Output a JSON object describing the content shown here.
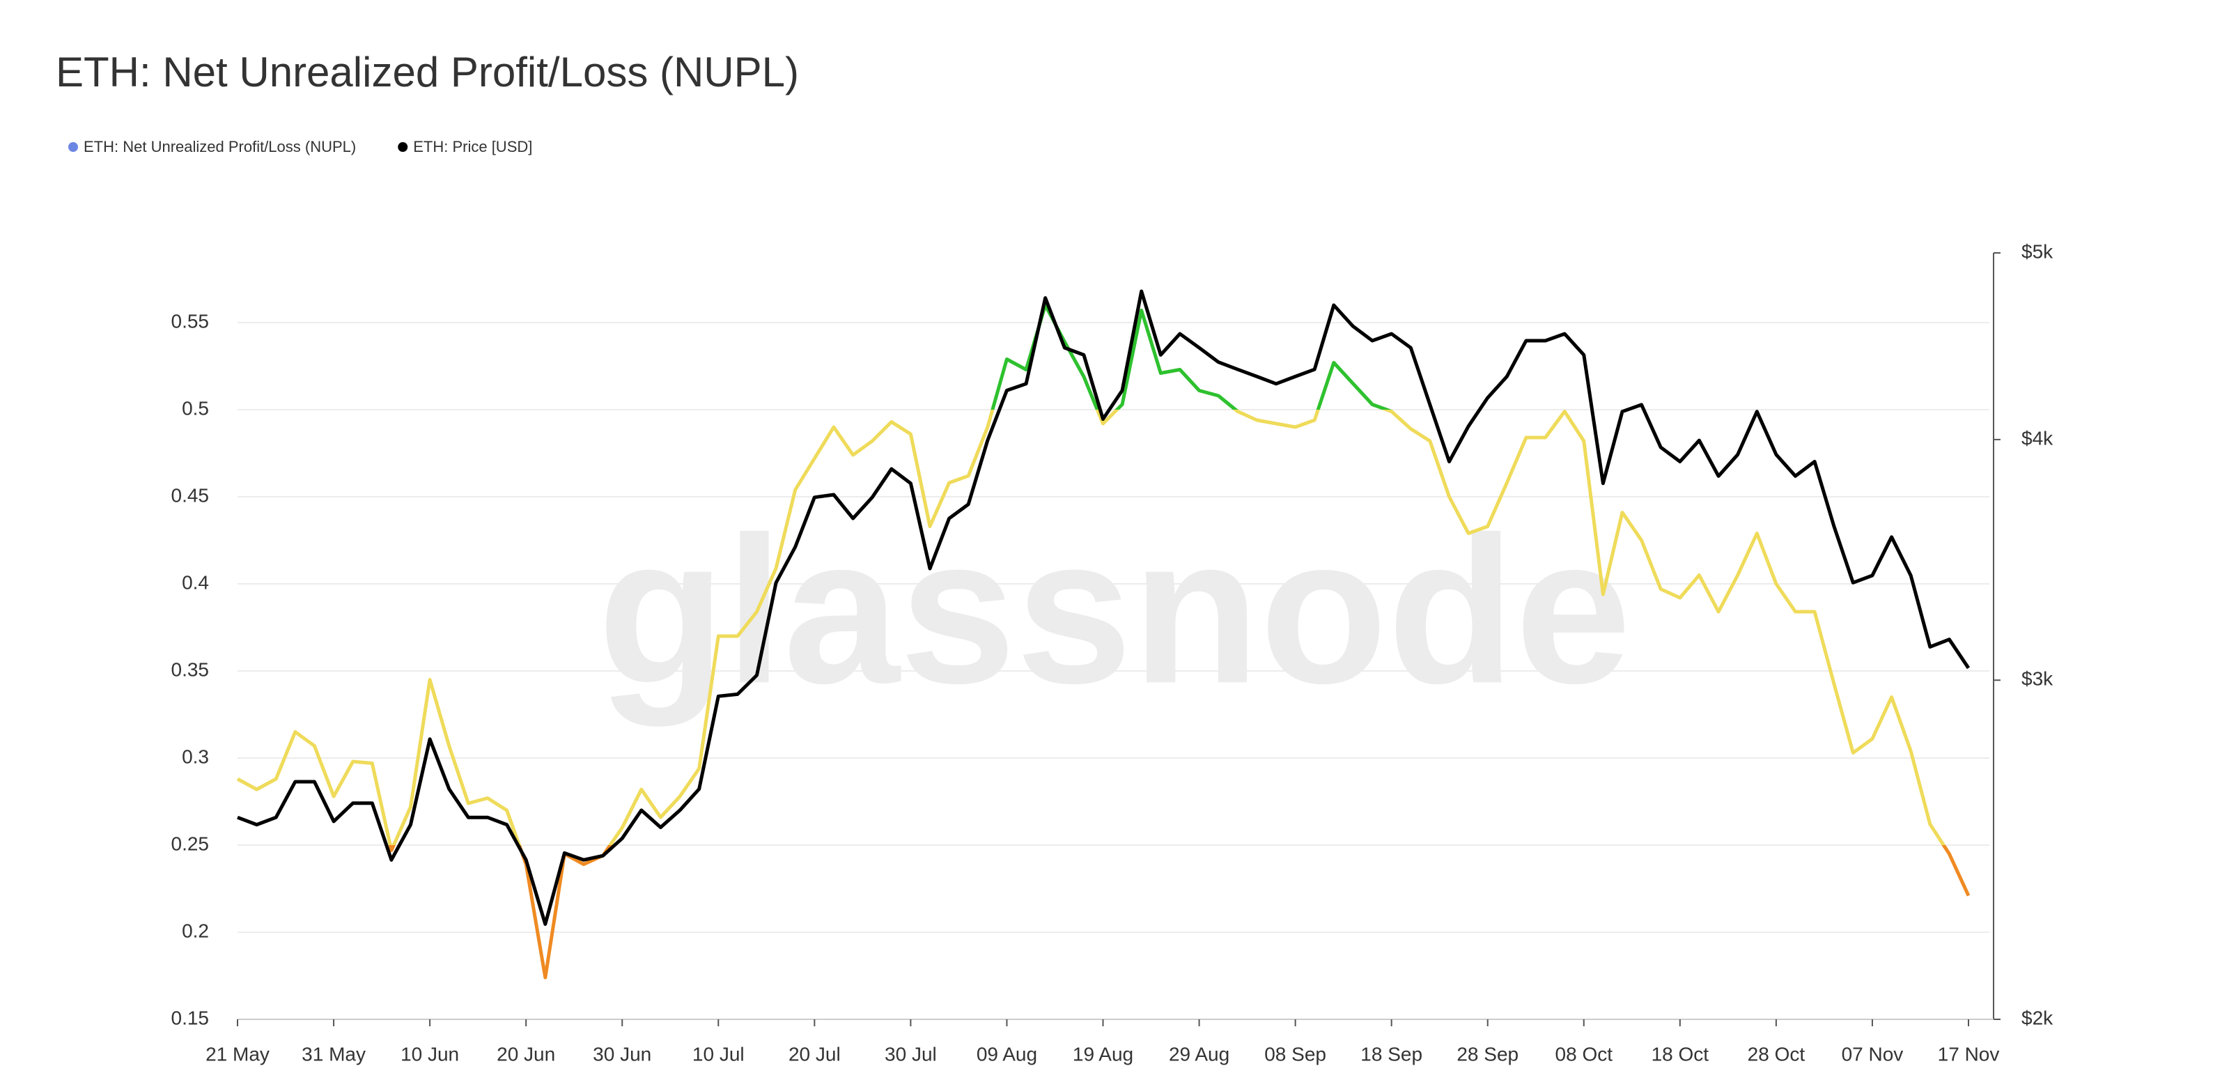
{
  "chart_data": {
    "type": "line",
    "title": "ETH: Net Unrealized Profit/Loss (NUPL)",
    "watermark": "glassnode",
    "categories": [
      "21 May",
      null,
      null,
      null,
      null,
      "31 May",
      null,
      null,
      null,
      null,
      "10 Jun",
      null,
      null,
      null,
      null,
      "20 Jun",
      null,
      null,
      null,
      null,
      "30 Jun",
      null,
      null,
      null,
      null,
      "10 Jul",
      null,
      null,
      null,
      null,
      "20 Jul",
      null,
      null,
      null,
      null,
      "30 Jul",
      null,
      null,
      null,
      null,
      "09 Aug",
      null,
      null,
      null,
      null,
      "19 Aug",
      null,
      null,
      null,
      null,
      "29 Aug",
      null,
      null,
      null,
      null,
      "08 Sep",
      null,
      null,
      null,
      null,
      "18 Sep",
      null,
      null,
      null,
      null,
      "28 Sep",
      null,
      null,
      null,
      null,
      "08 Oct",
      null,
      null,
      null,
      null,
      "18 Oct",
      null,
      null,
      null,
      null,
      "28 Oct",
      null,
      null,
      null,
      null,
      "07 Nov",
      null,
      null,
      null,
      null,
      "17 Nov"
    ],
    "series": [
      {
        "name": "ETH: Net Unrealized Profit/Loss (NUPL)",
        "color": "#6b86e3",
        "color_zones": [
          {
            "to": 0.25,
            "color": "#ef8a22"
          },
          {
            "from": 0.25,
            "to": 0.5,
            "color": "#efdb5a"
          },
          {
            "from": 0.5,
            "color": "#2ec12e"
          }
        ],
        "values": [
          0.288,
          0.282,
          0.288,
          0.315,
          0.307,
          0.278,
          0.298,
          0.297,
          0.247,
          0.272,
          0.345,
          0.307,
          0.274,
          0.277,
          0.27,
          0.239,
          0.174,
          0.245,
          0.239,
          0.244,
          0.26,
          0.282,
          0.266,
          0.278,
          0.294,
          0.37,
          0.37,
          0.384,
          0.409,
          0.454,
          0.472,
          0.49,
          0.474,
          0.482,
          0.493,
          0.486,
          0.433,
          0.458,
          0.462,
          0.49,
          0.529,
          0.523,
          0.56,
          0.539,
          0.519,
          0.492,
          0.503,
          0.557,
          0.521,
          0.523,
          0.511,
          0.508,
          0.499,
          0.494,
          0.492,
          0.49,
          0.494,
          0.527,
          0.515,
          0.503,
          0.499,
          0.489,
          0.482,
          0.45,
          0.429,
          0.433,
          0.458,
          0.484,
          0.484,
          0.499,
          0.482,
          0.394,
          0.441,
          0.425,
          0.397,
          0.392,
          0.405,
          0.384,
          0.405,
          0.429,
          0.4,
          0.384,
          0.384,
          0.343,
          0.303,
          0.311,
          0.335,
          0.304,
          0.262,
          0.245,
          0.221
        ]
      },
      {
        "name": "ETH: Price [USD]",
        "color": "#000000",
        "axis": "y2",
        "values": [
          2546,
          2524,
          2546,
          2657,
          2657,
          2534,
          2590,
          2590,
          2420,
          2524,
          2796,
          2634,
          2546,
          2546,
          2524,
          2420,
          2241,
          2440,
          2420,
          2432,
          2483,
          2568,
          2516,
          2568,
          2634,
          2943,
          2950,
          3018,
          3371,
          3518,
          3733,
          3745,
          3640,
          3733,
          3862,
          3796,
          3428,
          3640,
          3702,
          3996,
          4242,
          4276,
          4738,
          4464,
          4426,
          4099,
          4242,
          4776,
          4426,
          4539,
          4464,
          4388,
          4350,
          4313,
          4276,
          4313,
          4350,
          4697,
          4580,
          4502,
          4539,
          4464,
          4170,
          3896,
          4064,
          4205,
          4313,
          4502,
          4502,
          4539,
          4426,
          3796,
          4136,
          4170,
          3963,
          3896,
          3996,
          3829,
          3929,
          4136,
          3929,
          3829,
          3896,
          3608,
          3371,
          3400,
          3560,
          3400,
          3122,
          3150,
          3044
        ]
      }
    ],
    "ylim": [
      0.15,
      0.59
    ],
    "yticks": [
      0.15,
      0.2,
      0.25,
      0.3,
      0.35,
      0.4,
      0.45,
      0.5,
      0.55
    ],
    "y2lim": [
      2000,
      5000
    ],
    "y2scale": "log",
    "y2ticks": [
      {
        "value": 2000,
        "label": "$2k"
      },
      {
        "value": 3000,
        "label": "$3k"
      },
      {
        "value": 4000,
        "label": "$4k"
      },
      {
        "value": 5000,
        "label": "$5k"
      }
    ],
    "grid": true,
    "legend": "top-left"
  }
}
